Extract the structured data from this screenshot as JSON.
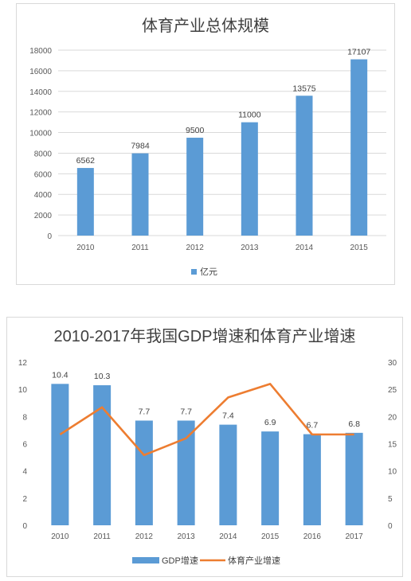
{
  "chart_data": [
    {
      "type": "bar",
      "title": "体育产业总体规模",
      "categories": [
        "2010",
        "2011",
        "2012",
        "2013",
        "2014",
        "2015"
      ],
      "series": [
        {
          "name": "亿元",
          "values": [
            6562,
            7984,
            9500,
            11000,
            13575,
            17107
          ]
        }
      ],
      "data_labels": [
        "6562",
        "7984",
        "9500",
        "11000",
        "13575",
        "17107"
      ],
      "ylim": [
        0,
        18000
      ],
      "yticks": [
        "0",
        "2000",
        "4000",
        "6000",
        "8000",
        "10000",
        "12000",
        "14000",
        "16000",
        "18000"
      ],
      "grid": true,
      "legend": "bottom",
      "colors": {
        "bar": "#5b9bd5",
        "grid": "#d9d9d9"
      }
    },
    {
      "type": "bar",
      "title": "2010-2017年我国GDP增速和体育产业增速",
      "categories": [
        "2010",
        "2011",
        "2012",
        "2013",
        "2014",
        "2015",
        "2016",
        "2017"
      ],
      "series": [
        {
          "name": "GDP增速",
          "type": "bar",
          "axis": "left",
          "values": [
            10.4,
            10.3,
            7.7,
            7.7,
            7.4,
            6.9,
            6.7,
            6.8
          ]
        },
        {
          "name": "体育产业增速",
          "type": "line",
          "axis": "right",
          "values": [
            16.7,
            21.7,
            12.9,
            16.0,
            23.5,
            26.0,
            16.7,
            16.7
          ]
        }
      ],
      "data_labels": [
        "10.4",
        "10.3",
        "7.7",
        "7.7",
        "7.4",
        "6.9",
        "6.7",
        "6.8"
      ],
      "ylim": [
        0,
        12
      ],
      "yticks": [
        "0",
        "2",
        "4",
        "6",
        "8",
        "10",
        "12"
      ],
      "y2lim": [
        0,
        30
      ],
      "y2ticks": [
        "0",
        "5",
        "10",
        "15",
        "20",
        "25",
        "30"
      ],
      "grid": false,
      "legend": "bottom",
      "colors": {
        "bar": "#5b9bd5",
        "line": "#ed7d31"
      }
    }
  ]
}
